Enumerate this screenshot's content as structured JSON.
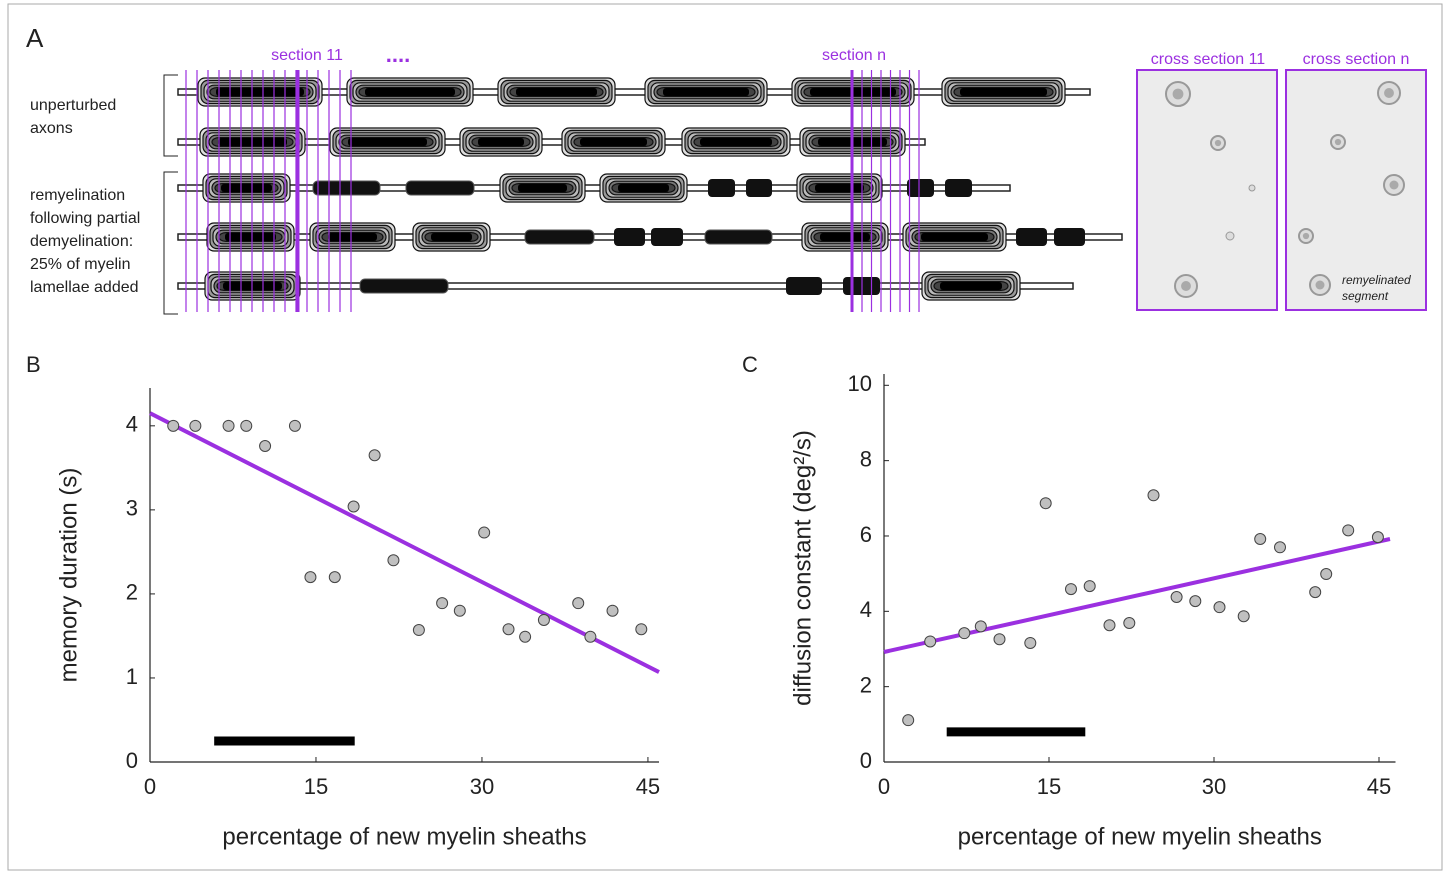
{
  "panel_a": {
    "label": "A",
    "section_11": "section 11",
    "section_n": "section n",
    "ellipsis": "....",
    "group_1_lines": [
      "unperturbed",
      "axons"
    ],
    "group_2_lines": [
      "remyelination",
      "following partial",
      "demyelination:",
      "25% of myelin",
      "lamellae added"
    ],
    "cross_section_11": "cross section 11",
    "cross_section_n": "cross section n",
    "remyelinated_lines": [
      "remyelinated",
      "segment"
    ]
  },
  "chart_data": [
    {
      "type": "scatter",
      "panel_label": "B",
      "xlabel": "percentage of new myelin sheaths",
      "ylabel": "memory duration (s)",
      "x": [
        2.1,
        4.1,
        7.1,
        8.7,
        10.4,
        13.1,
        14.5,
        16.7,
        18.4,
        20.3,
        22.0,
        24.3,
        26.4,
        28.0,
        30.2,
        32.4,
        33.9,
        35.6,
        38.7,
        39.8,
        41.8,
        44.4
      ],
      "values": [
        4,
        4,
        4,
        4,
        3.76,
        4,
        2.2,
        2.2,
        3.04,
        3.65,
        2.4,
        1.57,
        1.89,
        1.8,
        2.73,
        1.58,
        1.49,
        1.69,
        1.89,
        1.49,
        1.8,
        1.58
      ],
      "color": "#c0c0c0",
      "fit_line": {
        "x": [
          0,
          46
        ],
        "values": [
          4.15,
          1.07
        ],
        "color": "#9b30e0"
      },
      "bar_segment": {
        "x": [
          5.8,
          18.5
        ],
        "value": 0.25,
        "color": "#000000"
      },
      "xlim": [
        0,
        46
      ],
      "ylim": [
        0,
        4.45
      ],
      "xticks": [
        0,
        15,
        30,
        45
      ],
      "yticks": [
        0,
        1,
        2,
        3,
        4
      ]
    },
    {
      "type": "scatter",
      "panel_label": "C",
      "xlabel": "percentage of new myelin sheaths",
      "ylabel": "diffusion constant (deg²/s)",
      "x": [
        2.2,
        4.2,
        7.3,
        8.8,
        10.5,
        13.3,
        14.7,
        17.0,
        18.7,
        20.5,
        22.3,
        24.5,
        26.6,
        28.3,
        30.5,
        32.7,
        34.2,
        36.0,
        39.2,
        40.2,
        42.2,
        44.9
      ],
      "values": [
        1.11,
        3.2,
        3.42,
        3.6,
        3.26,
        3.16,
        6.87,
        4.59,
        4.67,
        3.63,
        3.69,
        7.08,
        4.38,
        4.27,
        4.11,
        3.87,
        5.92,
        5.7,
        4.51,
        4.99,
        6.15,
        5.97
      ],
      "color": "#c0c0c0",
      "fit_line": {
        "x": [
          0,
          46
        ],
        "values": [
          2.92,
          5.92
        ],
        "color": "#9b30e0"
      },
      "bar_segment": {
        "x": [
          5.7,
          18.3
        ],
        "value": 0.8,
        "color": "#000000"
      },
      "xlim": [
        0,
        46.5
      ],
      "ylim": [
        0,
        10.3
      ],
      "xticks": [
        0,
        15,
        30,
        45
      ],
      "yticks": [
        0,
        2,
        4,
        6,
        8,
        10
      ]
    }
  ]
}
